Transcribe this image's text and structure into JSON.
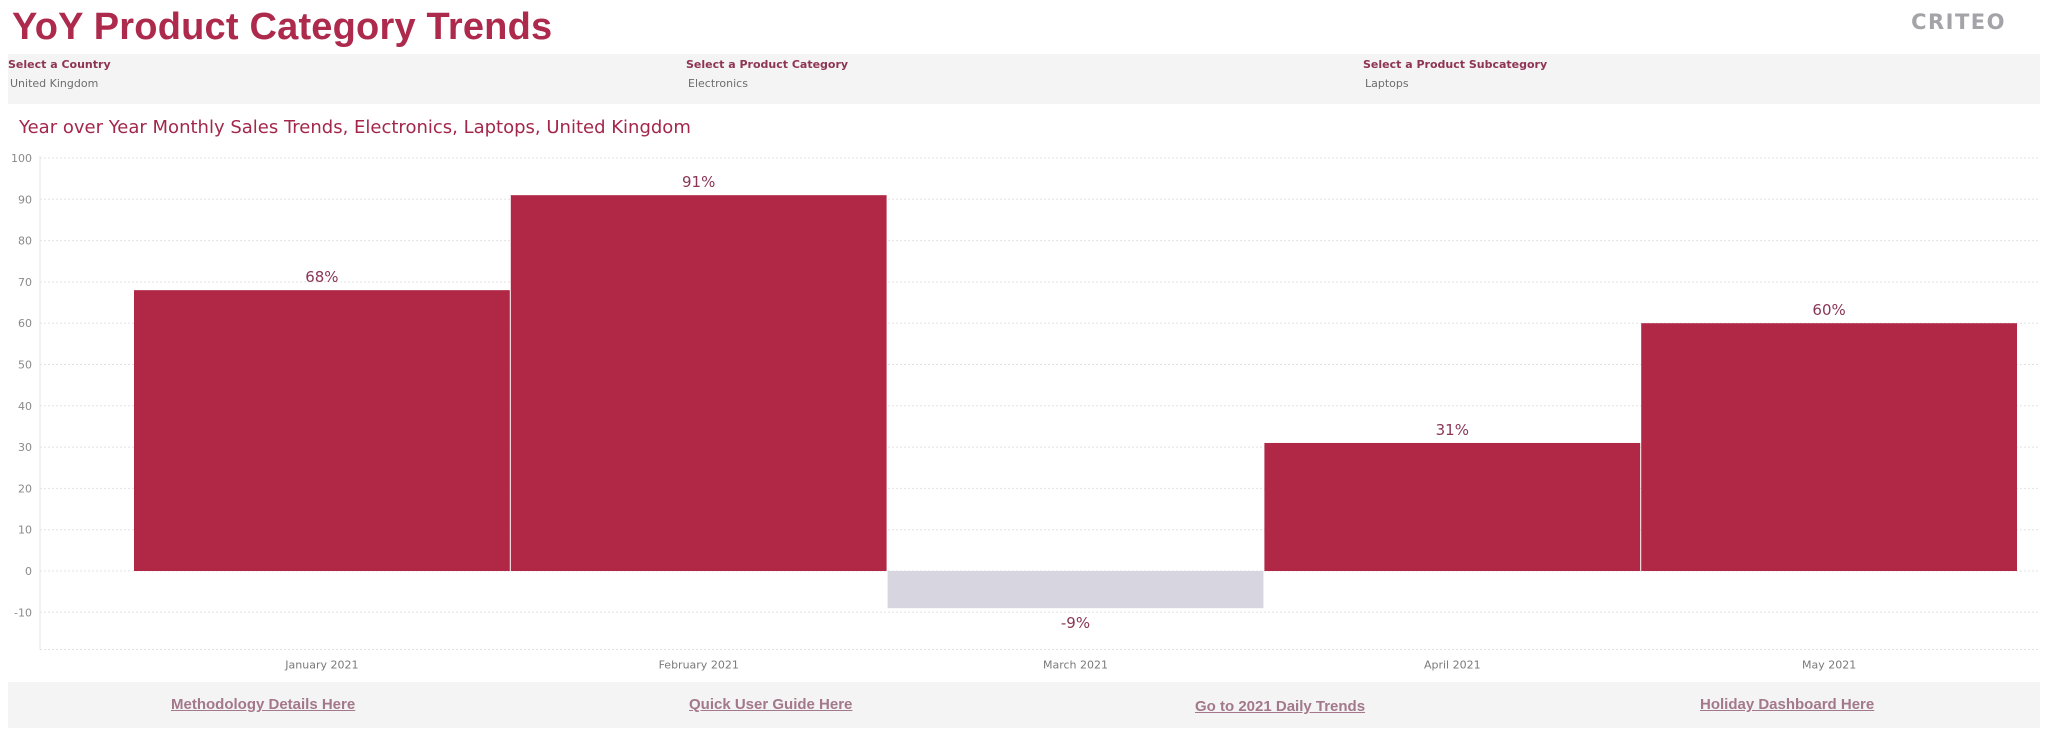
{
  "dashboard": {
    "title": "YoY Product Category Trends",
    "logo_text": "CRITEO"
  },
  "filters": [
    {
      "label": "Select a Country",
      "value": "United Kingdom"
    },
    {
      "label": "Select a Product Category",
      "value": "Electronics"
    },
    {
      "label": "Select a Product Subcategory",
      "value": "Laptops"
    }
  ],
  "chart_data": {
    "type": "bar",
    "title": "Year over Year Monthly Sales Trends, Electronics,  Laptops, United Kingdom",
    "categories": [
      "January 2021",
      "February 2021",
      "March 2021",
      "April 2021",
      "May 2021"
    ],
    "values": [
      68,
      91,
      -9,
      31,
      60
    ],
    "data_labels": [
      "68%",
      "91%",
      "-9%",
      "31%",
      "60%"
    ],
    "y_ticks": [
      100,
      90,
      80,
      70,
      60,
      50,
      40,
      30,
      20,
      10,
      0,
      -10
    ],
    "ylim": [
      -19,
      100
    ],
    "grid": true,
    "colors": {
      "positive": "#b12846",
      "negative": "#d6d5e0",
      "gridline": "#e3e3e3"
    }
  },
  "links": [
    "Methodology Details Here",
    "Quick User Guide Here",
    "Go to 2021 Daily Trends",
    "Holiday Dashboard Here"
  ]
}
